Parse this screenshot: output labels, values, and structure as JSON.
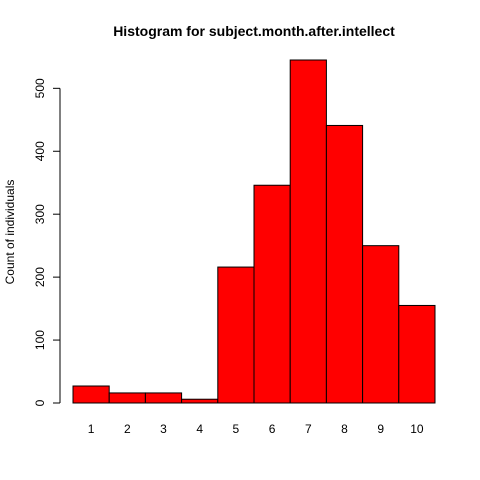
{
  "chart_data": {
    "type": "bar",
    "title": "Histogram for subject.month.after.intellect",
    "xlabel": "",
    "ylabel": "Count of individuals",
    "categories": [
      "1",
      "2",
      "3",
      "4",
      "5",
      "6",
      "7",
      "8",
      "9",
      "10"
    ],
    "values": [
      27,
      16,
      16,
      6,
      216,
      346,
      545,
      441,
      250,
      155
    ],
    "ylim": [
      0,
      545
    ],
    "yticks": [
      0,
      100,
      200,
      300,
      400,
      500
    ],
    "bar_color": "#ff0000",
    "bar_edge_color": "#000000",
    "grid": false
  }
}
